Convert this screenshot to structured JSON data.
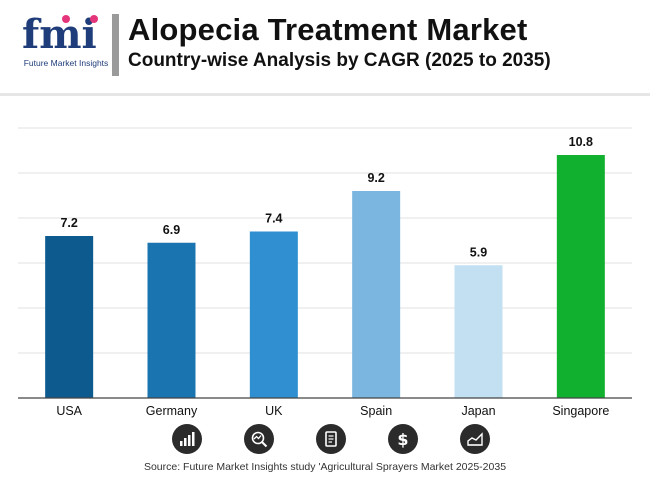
{
  "header": {
    "logo_text": "Future Market Insights",
    "title": "Alopecia Treatment Market",
    "subtitle": "Country-wise Analysis by CAGR (2025 to 2035)"
  },
  "chart_data": {
    "type": "bar",
    "title": "Alopecia Treatment Market",
    "subtitle": "Country-wise Analysis by CAGR (2025 to 2035)",
    "categories": [
      "USA",
      "Germany",
      "UK",
      "Spain",
      "Japan",
      "Singapore"
    ],
    "values": [
      7.2,
      6.9,
      7.4,
      9.2,
      5.9,
      10.8
    ],
    "bar_colors": [
      "#0d5a8f",
      "#1a74b0",
      "#2f8fd1",
      "#7ab6e0",
      "#c3dff2",
      "#12b02f"
    ],
    "xlabel": "",
    "ylabel": "",
    "ylim": [
      0,
      12
    ],
    "grid": true,
    "legend": "none"
  },
  "footer": {
    "icons": [
      "bar-chart-icon",
      "trend-magnifier-icon",
      "document-icon",
      "dollar-icon",
      "area-chart-icon"
    ],
    "source": "Source: Future Market Insights study 'Agricultural Sprayers Market 2025-2035"
  },
  "colors": {
    "title_text": "#111111",
    "gridline": "#e2e2e2",
    "icon_bg": "#2b2b2b",
    "logo_blue": "#1f3d7a"
  }
}
